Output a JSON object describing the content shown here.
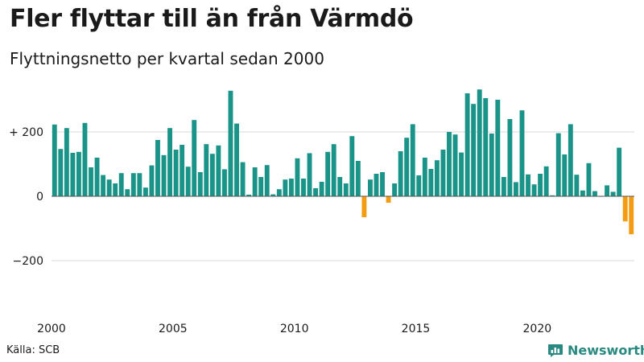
{
  "title": "Fler flyttar till än från Värmdö",
  "subtitle": "Flyttningsnetto per kvartal sedan 2000",
  "source": "Källa: SCB",
  "brand": {
    "name": "Newsworthy",
    "icon": "bar-chart-logo-icon"
  },
  "colors": {
    "positive": "#1a9388",
    "negative": "#f39c12",
    "grid": "#d9d9d9",
    "text": "#1a1a1a",
    "brand": "#2a8a82"
  },
  "chart_data": {
    "type": "bar",
    "title": "Fler flyttar till än från Värmdö",
    "subtitle": "Flyttningsnetto per kvartal sedan 2000",
    "x_start": "2000 Q1",
    "x_ticks": [
      "2000",
      "2005",
      "2010",
      "2015",
      "2020"
    ],
    "y_ticks": [
      {
        "value": 200,
        "label": "+ 200"
      },
      {
        "value": 0,
        "label": "0"
      },
      {
        "value": -200,
        "label": "−200"
      }
    ],
    "ylim": [
      -330,
      340
    ],
    "grid": true,
    "values": [
      223,
      147,
      212,
      135,
      138,
      228,
      90,
      120,
      66,
      52,
      40,
      72,
      22,
      72,
      72,
      27,
      96,
      175,
      128,
      212,
      145,
      160,
      92,
      237,
      75,
      162,
      132,
      158,
      84,
      328,
      226,
      106,
      5,
      90,
      60,
      97,
      6,
      22,
      52,
      55,
      118,
      55,
      134,
      25,
      45,
      138,
      162,
      60,
      40,
      187,
      110,
      -65,
      52,
      70,
      75,
      -20,
      40,
      140,
      182,
      224,
      65,
      120,
      85,
      112,
      145,
      200,
      192,
      136,
      320,
      287,
      332,
      305,
      195,
      300,
      60,
      240,
      44,
      267,
      68,
      37,
      70,
      93,
      3,
      196,
      130,
      224,
      67,
      18,
      103,
      16,
      0,
      34,
      14,
      151,
      -78,
      -118
    ]
  }
}
